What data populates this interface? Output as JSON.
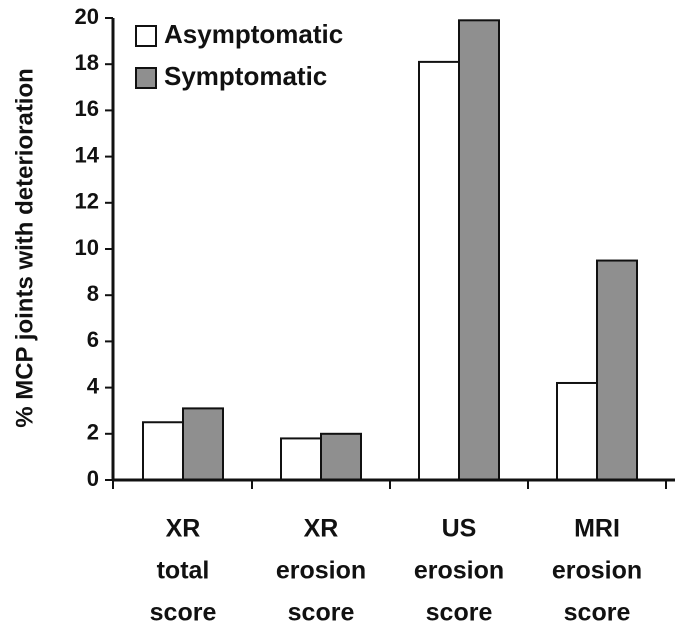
{
  "chart_data": {
    "type": "bar",
    "ylabel": "% MCP joints with deterioration",
    "xlabel": "",
    "ylim": [
      0,
      20
    ],
    "yticks": [
      "0",
      "2",
      "4",
      "6",
      "8",
      "10",
      "12",
      "14",
      "16",
      "18",
      "20"
    ],
    "categories": [
      [
        "XR",
        "total",
        "score"
      ],
      [
        "XR",
        "erosion",
        "score"
      ],
      [
        "US",
        "erosion",
        "score"
      ],
      [
        "MRI",
        "erosion",
        "score"
      ]
    ],
    "series": [
      {
        "name": "Asymptomatic",
        "color": "#ffffff",
        "values": [
          2.5,
          1.8,
          18.1,
          4.2
        ]
      },
      {
        "name": "Symptomatic",
        "color": "#8f8f8f",
        "values": [
          3.1,
          2.0,
          19.9,
          9.5
        ]
      }
    ],
    "legend_position": "top-left",
    "grid": false
  }
}
